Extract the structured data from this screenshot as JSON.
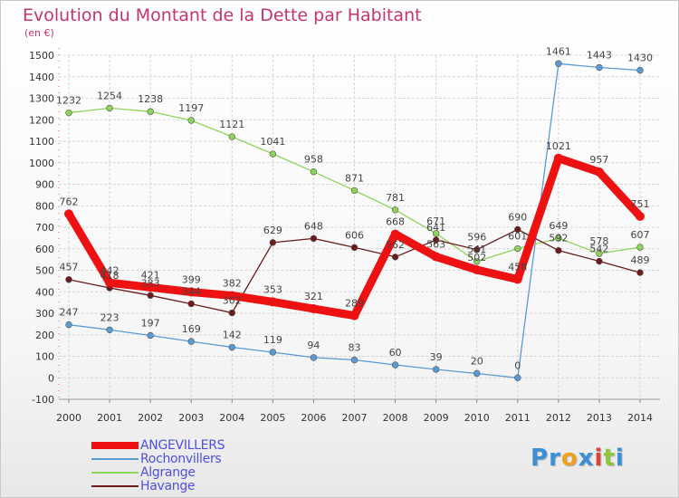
{
  "header": {
    "title": "Evolution du Montant de la Dette par Habitant",
    "subtitle": "(en €)"
  },
  "colors": {
    "title": "#c8336e",
    "legend_text": "#5050e0",
    "grid": "#d6d6d6",
    "axis_text": "#333333",
    "value_label": "#444444"
  },
  "logo": {
    "letters": [
      {
        "ch": "P",
        "color": "#3b8fd6"
      },
      {
        "ch": "r",
        "color": "#3b8fd6"
      },
      {
        "ch": "o",
        "color": "#f0a020"
      },
      {
        "ch": "x",
        "color": "#3b8fd6"
      },
      {
        "ch": "i",
        "color": "#e0403a"
      },
      {
        "ch": "t",
        "color": "#8cc63f"
      },
      {
        "ch": "i",
        "color": "#3b8fd6"
      }
    ]
  },
  "chart_data": {
    "type": "line",
    "title": "Evolution du Montant de la Dette par Habitant",
    "subtitle": "(en €)",
    "xlabel": "",
    "ylabel": "",
    "x": [
      2000,
      2001,
      2002,
      2003,
      2004,
      2005,
      2006,
      2007,
      2008,
      2009,
      2010,
      2011,
      2012,
      2013,
      2014
    ],
    "ylim": [
      -100,
      1500
    ],
    "yticks": [
      -100,
      0,
      100,
      200,
      300,
      400,
      500,
      600,
      700,
      800,
      900,
      1000,
      1100,
      1200,
      1300,
      1400,
      1500
    ],
    "grid": true,
    "legend_position": "bottom-left",
    "series": [
      {
        "name": "ANGEVILLERS",
        "color": "#ee1111",
        "thick": true,
        "values": [
          762,
          442,
          421,
          399,
          382,
          353,
          321,
          289,
          668,
          563,
          502,
          458,
          1021,
          957,
          751
        ]
      },
      {
        "name": "Rochonvillers",
        "color": "#5b9bd5",
        "thick": false,
        "values": [
          247,
          223,
          197,
          169,
          142,
          119,
          94,
          83,
          60,
          39,
          20,
          0,
          1461,
          1443,
          1430
        ]
      },
      {
        "name": "Algrange",
        "color": "#8fd45a",
        "thick": false,
        "values": [
          1232,
          1254,
          1238,
          1197,
          1121,
          1041,
          958,
          871,
          781,
          671,
          541,
          601,
          649,
          578,
          607
        ]
      },
      {
        "name": "Havange",
        "color": "#6b1b1b",
        "thick": false,
        "values": [
          457,
          418,
          383,
          344,
          302,
          629,
          648,
          606,
          562,
          641,
          596,
          690,
          592,
          542,
          489
        ]
      }
    ]
  }
}
